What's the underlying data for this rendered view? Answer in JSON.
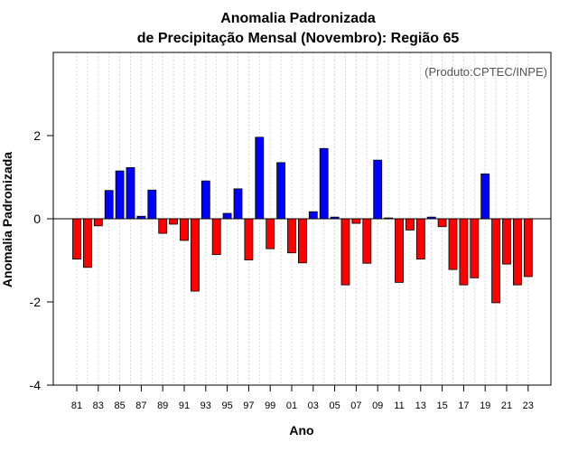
{
  "chart_data": {
    "type": "bar",
    "title_line1": "Anomalia Padronizada",
    "title_line2": "de Precipitação Mensal (Novembro): Região 65",
    "credit": "(Produto:CPTEC/INPE)",
    "xlabel": "Ano",
    "ylabel": "Anomalia Padronizada",
    "ylim": [
      -4,
      4
    ],
    "yticks": [
      -4,
      -2,
      0,
      2
    ],
    "ytick_labels": [
      "-4",
      "-2",
      "0",
      "2"
    ],
    "positive_color": "#0000ff",
    "negative_color": "#ff0000",
    "categories": [
      "81",
      "82",
      "83",
      "84",
      "85",
      "86",
      "87",
      "88",
      "89",
      "90",
      "91",
      "92",
      "93",
      "94",
      "95",
      "96",
      "97",
      "98",
      "99",
      "00",
      "01",
      "02",
      "03",
      "04",
      "05",
      "06",
      "07",
      "08",
      "09",
      "10",
      "11",
      "12",
      "13",
      "14",
      "15",
      "16",
      "17",
      "18",
      "19",
      "20",
      "21",
      "22",
      "23"
    ],
    "xtick_labels": [
      "81",
      "83",
      "85",
      "87",
      "89",
      "91",
      "93",
      "95",
      "97",
      "99",
      "01",
      "03",
      "05",
      "07",
      "09",
      "11",
      "13",
      "15",
      "17",
      "19",
      "21",
      "23"
    ],
    "values": [
      -0.97,
      -1.17,
      -0.17,
      0.68,
      1.15,
      1.23,
      0.06,
      0.69,
      -0.35,
      -0.13,
      -0.52,
      -1.74,
      0.91,
      -0.86,
      0.13,
      0.72,
      -0.99,
      1.96,
      -0.72,
      1.35,
      -0.82,
      -1.06,
      0.17,
      1.69,
      0.04,
      -1.59,
      -0.11,
      -1.07,
      1.41,
      0.02,
      -1.53,
      -0.27,
      -0.97,
      0.04,
      -0.19,
      -1.22,
      -1.59,
      -1.42,
      1.08,
      -2.02,
      -1.09,
      -1.59,
      -1.39
    ]
  }
}
